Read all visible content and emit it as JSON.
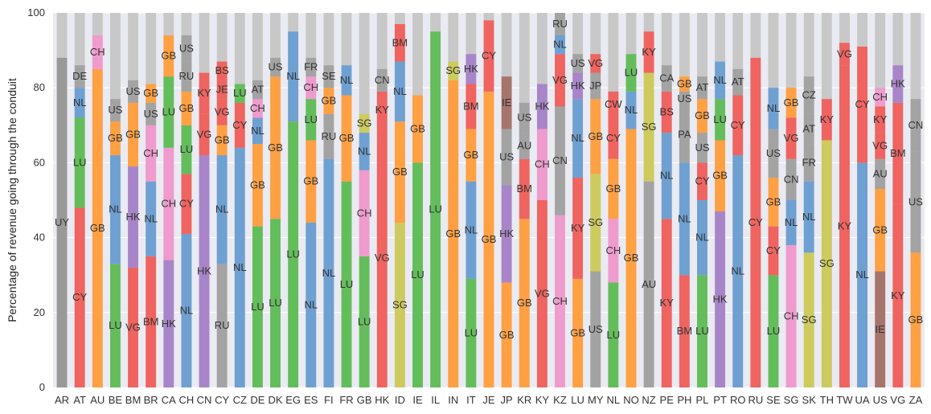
{
  "chart_data": {
    "type": "bar",
    "stacked": true,
    "ylabel": "Percentage of revenue going through the conduit",
    "xlabel": "",
    "ylim": [
      0,
      100
    ],
    "yticks": [
      0,
      20,
      40,
      60,
      80,
      100
    ],
    "grid": true,
    "remainder_color": "#c8c8c8",
    "conduit_colors": {
      "UY": "#999999",
      "CY": "#ef6460",
      "LU": "#63bd5b",
      "NL": "#6fa0d2",
      "DE": "#a3a3a3",
      "GB": "#ffa043",
      "CH": "#ef9bcd",
      "VG": "#ef6460",
      "HK": "#a885c8",
      "US": "#a3a3a3",
      "BM": "#ef6460",
      "RU": "#a3a3a3",
      "BS": "#ef6460",
      "JE": "#ef6460",
      "AT": "#a3a3a3",
      "FR": "#a3a3a3",
      "SE": "#a3a3a3",
      "SG": "#cdcb5e",
      "KY": "#ef6460",
      "CN": "#a3a3a3",
      "IE": "#a7746c",
      "AU": "#a3a3a3",
      "CW": "#ef6460",
      "JP": "#a3a3a3",
      "CA": "#a3a3a3",
      "PA": "#a3a3a3",
      "CZ": "#a3a3a3",
      "FR2": "#a3a3a3"
    },
    "categories": [
      "AR",
      "AT",
      "AU",
      "BE",
      "BM",
      "BR",
      "CA",
      "CH",
      "CN",
      "CY",
      "CZ",
      "DE",
      "DK",
      "EG",
      "ES",
      "FI",
      "FR",
      "GB",
      "HK",
      "ID",
      "IE",
      "IL",
      "IN",
      "IT",
      "JE",
      "JP",
      "KR",
      "KY",
      "KZ",
      "LU",
      "MY",
      "NL",
      "NO",
      "NZ",
      "PE",
      "PH",
      "PL",
      "PT",
      "RO",
      "RU",
      "SE",
      "SG",
      "SK",
      "TH",
      "TW",
      "UA",
      "US",
      "VG",
      "ZA"
    ],
    "stacks": [
      [
        {
          "c": "UY",
          "v": 88
        }
      ],
      [
        {
          "c": "CY",
          "v": 48
        },
        {
          "c": "LU",
          "v": 24
        },
        {
          "c": "NL",
          "v": 8
        },
        {
          "c": "DE",
          "v": 6
        }
      ],
      [
        {
          "c": "GB",
          "v": 85
        },
        {
          "c": "CH",
          "v": 9
        }
      ],
      [
        {
          "c": "LU",
          "v": 33
        },
        {
          "c": "NL",
          "v": 29
        },
        {
          "c": "GB",
          "v": 9
        },
        {
          "c": "US",
          "v": 6
        }
      ],
      [
        {
          "c": "VG",
          "v": 32
        },
        {
          "c": "HK",
          "v": 27
        },
        {
          "c": "GB",
          "v": 17
        },
        {
          "c": "US",
          "v": 6
        }
      ],
      [
        {
          "c": "BM",
          "v": 35
        },
        {
          "c": "NL",
          "v": 20
        },
        {
          "c": "CH",
          "v": 15
        },
        {
          "c": "US",
          "v": 6
        },
        {
          "c": "GB",
          "v": 5
        }
      ],
      [
        {
          "c": "HK",
          "v": 34
        },
        {
          "c": "CH",
          "v": 30
        },
        {
          "c": "LU",
          "v": 19
        },
        {
          "c": "GB",
          "v": 11
        }
      ],
      [
        {
          "c": "NL",
          "v": 41
        },
        {
          "c": "CY",
          "v": 16
        },
        {
          "c": "LU",
          "v": 13
        },
        {
          "c": "GB",
          "v": 9
        },
        {
          "c": "RU",
          "v": 8
        },
        {
          "c": "US",
          "v": 7
        }
      ],
      [
        {
          "c": "HK",
          "v": 62
        },
        {
          "c": "VG",
          "v": 11
        },
        {
          "c": "KY",
          "v": 11
        }
      ],
      [
        {
          "c": "RU",
          "v": 33
        },
        {
          "c": "NL",
          "v": 29
        },
        {
          "c": "GB",
          "v": 8
        },
        {
          "c": "VG",
          "v": 7
        },
        {
          "c": "JE",
          "v": 5
        },
        {
          "c": "BS",
          "v": 5
        }
      ],
      [
        {
          "c": "NL",
          "v": 64
        },
        {
          "c": "CY",
          "v": 12
        },
        {
          "c": "LU",
          "v": 5
        }
      ],
      [
        {
          "c": "LU",
          "v": 43
        },
        {
          "c": "GB",
          "v": 22
        },
        {
          "c": "NL",
          "v": 7
        },
        {
          "c": "CH",
          "v": 5
        },
        {
          "c": "AT",
          "v": 5
        }
      ],
      [
        {
          "c": "LU",
          "v": 45
        },
        {
          "c": "GB",
          "v": 38
        },
        {
          "c": "US",
          "v": 5
        }
      ],
      [
        {
          "c": "LU",
          "v": 71
        },
        {
          "c": "NL",
          "v": 24
        }
      ],
      [
        {
          "c": "NL",
          "v": 44
        },
        {
          "c": "GB",
          "v": 22
        },
        {
          "c": "LU",
          "v": 11
        },
        {
          "c": "CH",
          "v": 6
        },
        {
          "c": "FR",
          "v": 5
        }
      ],
      [
        {
          "c": "NL",
          "v": 61
        },
        {
          "c": "RU",
          "v": 12
        },
        {
          "c": "GB",
          "v": 7
        },
        {
          "c": "SE",
          "v": 6
        }
      ],
      [
        {
          "c": "LU",
          "v": 55
        },
        {
          "c": "GB",
          "v": 23
        },
        {
          "c": "NL",
          "v": 8
        }
      ],
      [
        {
          "c": "LU",
          "v": 35
        },
        {
          "c": "CH",
          "v": 23
        },
        {
          "c": "NL",
          "v": 10
        },
        {
          "c": "SG",
          "v": 5
        }
      ],
      [
        {
          "c": "VG",
          "v": 69
        },
        {
          "c": "KY",
          "v": 10
        },
        {
          "c": "CN",
          "v": 6
        }
      ],
      [
        {
          "c": "SG",
          "v": 44
        },
        {
          "c": "GB",
          "v": 27
        },
        {
          "c": "NL",
          "v": 16
        },
        {
          "c": "BM",
          "v": 10
        }
      ],
      [
        {
          "c": "LU",
          "v": 60
        },
        {
          "c": "GB",
          "v": 18
        }
      ],
      [
        {
          "c": "LU",
          "v": 95
        }
      ],
      [
        {
          "c": "GB",
          "v": 82
        },
        {
          "c": "SG",
          "v": 5
        }
      ],
      [
        {
          "c": "LU",
          "v": 29
        },
        {
          "c": "NL",
          "v": 26
        },
        {
          "c": "GB",
          "v": 14
        },
        {
          "c": "BM",
          "v": 12
        },
        {
          "c": "HK",
          "v": 8
        }
      ],
      [
        {
          "c": "GB",
          "v": 79
        },
        {
          "c": "CY",
          "v": 19
        }
      ],
      [
        {
          "c": "GB",
          "v": 28
        },
        {
          "c": "HK",
          "v": 26
        },
        {
          "c": "US",
          "v": 15
        },
        {
          "c": "IE",
          "v": 14
        }
      ],
      [
        {
          "c": "GB",
          "v": 45
        },
        {
          "c": "BM",
          "v": 16
        },
        {
          "c": "AU",
          "v": 7
        },
        {
          "c": "US",
          "v": 8
        }
      ],
      [
        {
          "c": "VG",
          "v": 50
        },
        {
          "c": "CH",
          "v": 19
        },
        {
          "c": "HK",
          "v": 12
        }
      ],
      [
        {
          "c": "CH",
          "v": 46
        },
        {
          "c": "CN",
          "v": 29
        },
        {
          "c": "VG",
          "v": 14
        },
        {
          "c": "NL",
          "v": 5
        },
        {
          "c": "RU",
          "v": 6
        }
      ],
      [
        {
          "c": "GB",
          "v": 29
        },
        {
          "c": "KY",
          "v": 27
        },
        {
          "c": "NL",
          "v": 21
        },
        {
          "c": "HK",
          "v": 7
        },
        {
          "c": "US",
          "v": 5
        }
      ],
      [
        {
          "c": "US",
          "v": 31
        },
        {
          "c": "SG",
          "v": 26
        },
        {
          "c": "GB",
          "v": 20
        },
        {
          "c": "JP",
          "v": 7
        },
        {
          "c": "VG",
          "v": 5
        }
      ],
      [
        {
          "c": "LU",
          "v": 28
        },
        {
          "c": "CH",
          "v": 17
        },
        {
          "c": "GB",
          "v": 16
        },
        {
          "c": "CY",
          "v": 11
        },
        {
          "c": "CW",
          "v": 7
        }
      ],
      [
        {
          "c": "GB",
          "v": 69
        },
        {
          "c": "NL",
          "v": 10
        },
        {
          "c": "LU",
          "v": 10
        }
      ],
      [
        {
          "c": "AU",
          "v": 55
        },
        {
          "c": "SG",
          "v": 29
        },
        {
          "c": "KY",
          "v": 11
        }
      ],
      [
        {
          "c": "KY",
          "v": 45
        },
        {
          "c": "NL",
          "v": 23
        },
        {
          "c": "BS",
          "v": 11
        },
        {
          "c": "CA",
          "v": 7
        }
      ],
      [
        {
          "c": "BM",
          "v": 30
        },
        {
          "c": "NL",
          "v": 30
        },
        {
          "c": "PA",
          "v": 15
        },
        {
          "c": "US",
          "v": 4
        },
        {
          "c": "GB",
          "v": 4
        }
      ],
      [
        {
          "c": "LU",
          "v": 30
        },
        {
          "c": "NL",
          "v": 20
        },
        {
          "c": "CY",
          "v": 10
        },
        {
          "c": "US",
          "v": 8
        },
        {
          "c": "GB",
          "v": 9
        },
        {
          "c": "AT",
          "v": 6
        }
      ],
      [
        {
          "c": "HK",
          "v": 47
        },
        {
          "c": "GB",
          "v": 19
        },
        {
          "c": "LU",
          "v": 11
        },
        {
          "c": "NL",
          "v": 10
        }
      ],
      [
        {
          "c": "NL",
          "v": 62
        },
        {
          "c": "CY",
          "v": 16
        },
        {
          "c": "AT",
          "v": 7
        }
      ],
      [
        {
          "c": "CY",
          "v": 88
        }
      ],
      [
        {
          "c": "LU",
          "v": 30
        },
        {
          "c": "CY",
          "v": 13
        },
        {
          "c": "GB",
          "v": 13
        },
        {
          "c": "US",
          "v": 13
        },
        {
          "c": "NL",
          "v": 11
        }
      ],
      [
        {
          "c": "CH",
          "v": 38
        },
        {
          "c": "NL",
          "v": 12
        },
        {
          "c": "CN",
          "v": 11
        },
        {
          "c": "VG",
          "v": 11
        },
        {
          "c": "GB",
          "v": 8
        }
      ],
      [
        {
          "c": "SG",
          "v": 36
        },
        {
          "c": "NL",
          "v": 19
        },
        {
          "c": "FR",
          "v": 10
        },
        {
          "c": "AT",
          "v": 8
        },
        {
          "c": "CZ",
          "v": 10
        }
      ],
      [
        {
          "c": "SG",
          "v": 66
        },
        {
          "c": "KY",
          "v": 11
        }
      ],
      [
        {
          "c": "KY",
          "v": 86
        },
        {
          "c": "VG",
          "v": 6
        }
      ],
      [
        {
          "c": "NL",
          "v": 60
        },
        {
          "c": "CY",
          "v": 31
        }
      ],
      [
        {
          "c": "IE",
          "v": 31
        },
        {
          "c": "GB",
          "v": 22
        },
        {
          "c": "AU",
          "v": 8
        },
        {
          "c": "VG",
          "v": 7
        },
        {
          "c": "KY",
          "v": 7
        },
        {
          "c": "CH",
          "v": 5
        }
      ],
      [
        {
          "c": "KY",
          "v": 49
        },
        {
          "c": "BM",
          "v": 27
        },
        {
          "c": "HK",
          "v": 10
        }
      ],
      [
        {
          "c": "GB",
          "v": 36
        },
        {
          "c": "US",
          "v": 27
        },
        {
          "c": "CN",
          "v": 14
        }
      ]
    ]
  }
}
